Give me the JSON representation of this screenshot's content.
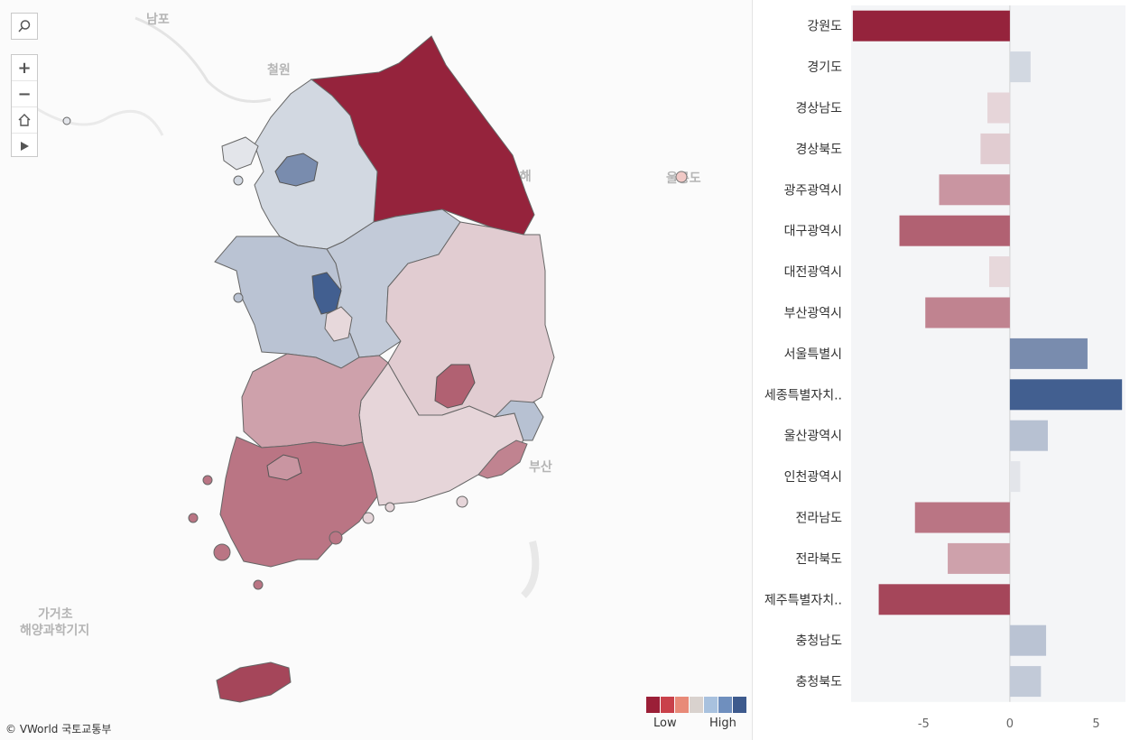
{
  "map": {
    "copyright": "© VWorld 국토교통부",
    "legend": {
      "low": "Low",
      "high": "High",
      "swatches": [
        "#9b1f37",
        "#c9414a",
        "#e88a78",
        "#d9d2ce",
        "#a8c1de",
        "#6f8fbe",
        "#3d5a8d"
      ]
    },
    "bg_labels": [
      {
        "name": "nampo",
        "text": "남포"
      },
      {
        "name": "cheolwon",
        "text": "철원"
      },
      {
        "name": "donghae",
        "text": "동해"
      },
      {
        "name": "ulleung",
        "text": "울릉도"
      },
      {
        "name": "busan",
        "text": "부산"
      },
      {
        "name": "gageocho",
        "text": "가거초"
      },
      {
        "name": "gageocho-base",
        "text": "해양과학기지"
      }
    ]
  },
  "colors": {
    "neg_strong": "#94213a",
    "neutral": "#f3f3f3",
    "pos_strong": "#3d5a8d"
  },
  "chart_data": {
    "type": "bar",
    "orientation": "horizontal",
    "categories": [
      "강원도",
      "경기도",
      "경상남도",
      "경상북도",
      "광주광역시",
      "대구광역시",
      "대전광역시",
      "부산광역시",
      "서울특별시",
      "세종특별자치..",
      "울산광역시",
      "인천광역시",
      "전라남도",
      "전라북도",
      "제주특별자치..",
      "충청남도",
      "충청북도"
    ],
    "values": [
      -9.1,
      1.2,
      -1.3,
      -1.7,
      -4.1,
      -6.4,
      -1.2,
      -4.9,
      4.5,
      6.5,
      2.2,
      0.6,
      -5.5,
      -3.6,
      -7.6,
      2.1,
      1.8
    ],
    "xlim": [
      -9.2,
      6.7
    ],
    "xticks": [
      "-5",
      "0",
      "5"
    ],
    "xtick_values": [
      -5,
      0,
      5
    ],
    "grid": true
  },
  "regions": [
    {
      "name": "강원도",
      "value": -9.1
    },
    {
      "name": "경기도",
      "value": 1.2
    },
    {
      "name": "서울특별시",
      "value": 4.5
    },
    {
      "name": "인천광역시",
      "value": 0.6
    },
    {
      "name": "충청남도",
      "value": 2.1
    },
    {
      "name": "충청북도",
      "value": 1.8
    },
    {
      "name": "세종특별자치시",
      "value": 6.5
    },
    {
      "name": "대전광역시",
      "value": -1.2
    },
    {
      "name": "경상북도",
      "value": -1.7
    },
    {
      "name": "대구광역시",
      "value": -6.4
    },
    {
      "name": "경상남도",
      "value": -1.3
    },
    {
      "name": "울산광역시",
      "value": 2.2
    },
    {
      "name": "부산광역시",
      "value": -4.9
    },
    {
      "name": "전라북도",
      "value": -3.6
    },
    {
      "name": "전라남도",
      "value": -5.5
    },
    {
      "name": "광주광역시",
      "value": -4.1
    },
    {
      "name": "제주특별자치도",
      "value": -7.6
    }
  ]
}
